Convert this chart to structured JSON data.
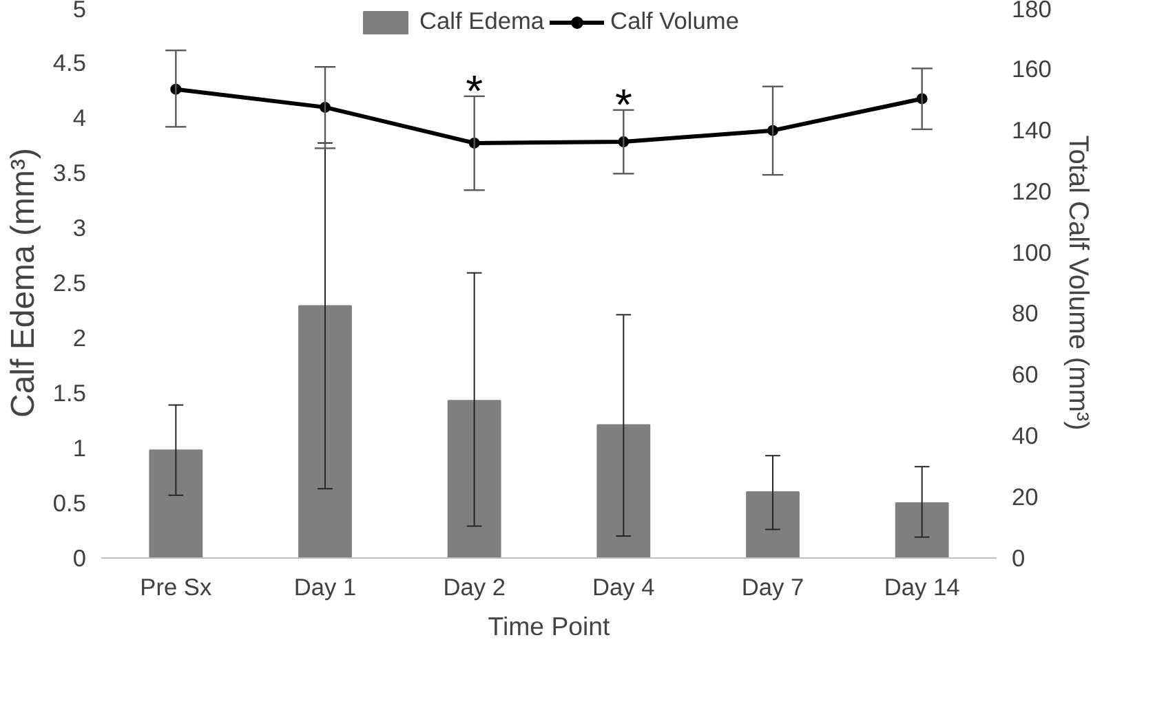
{
  "chart_data": {
    "type": "bar",
    "xlabel": "Time Point",
    "ylabel": "Calf Edema (mm³)",
    "y2label": "Total Calf Volume (mm³)",
    "categories": [
      "Pre Sx",
      "Day 1",
      "Day 2",
      "Day 4",
      "Day 7",
      "Day 14"
    ],
    "series": [
      {
        "name": "Calf Edema",
        "color": "#7f7f7f",
        "values": [
          0.98,
          2.29,
          1.43,
          1.21,
          0.6,
          0.5
        ],
        "errors": [
          [
            0.57,
            1.39
          ],
          [
            0.63,
            3.77
          ],
          [
            0.29,
            2.59
          ],
          [
            0.2,
            2.21
          ],
          [
            0.26,
            0.93
          ],
          [
            0.19,
            0.83
          ]
        ]
      },
      {
        "name": "Calf Volume",
        "type": "line",
        "axis": "y2",
        "color": "#000000",
        "marker": "circle",
        "values": [
          153.3,
          147.4,
          135.7,
          136.1,
          139.8,
          150.2
        ],
        "errors": [
          [
            141,
            166
          ],
          [
            134,
            160.6
          ],
          [
            120.3,
            151
          ],
          [
            125.7,
            146.5
          ],
          [
            125.3,
            154.2
          ],
          [
            140.2,
            160.1
          ]
        ]
      }
    ],
    "ylim": [
      0,
      5
    ],
    "yticks": [
      0,
      0.5,
      1,
      1.5,
      2,
      2.5,
      3,
      3.5,
      4,
      4.5,
      5
    ],
    "y2lim": [
      0,
      180
    ],
    "y2ticks": [
      0,
      20,
      40,
      60,
      80,
      100,
      120,
      140,
      160,
      180
    ],
    "annotations": [
      {
        "text": "*",
        "x": "Day 2"
      },
      {
        "text": "*",
        "x": "Day 4"
      }
    ],
    "legend": "top",
    "grid": false
  }
}
